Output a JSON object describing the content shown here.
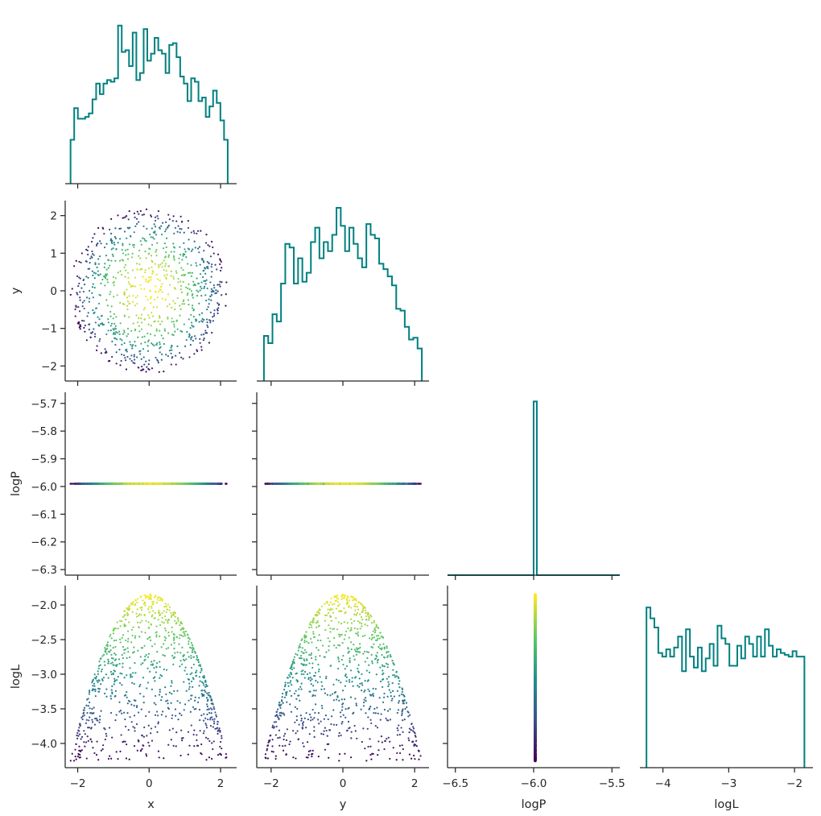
{
  "chart_data": {
    "type": "scatter",
    "title": "",
    "variables": [
      "x",
      "y",
      "logP",
      "logL"
    ],
    "axis_labels": {
      "x": "x",
      "y": "y",
      "logP": "logP",
      "logL": "logL"
    },
    "ranges": {
      "x": [
        -2.35,
        2.45
      ],
      "y": [
        -2.4,
        2.4
      ],
      "logP": [
        -6.32,
        -5.66
      ],
      "logP_diag": [
        -6.55,
        -5.45
      ],
      "logL": [
        -4.35,
        -1.72
      ]
    },
    "ticks": {
      "x": [
        -2,
        0,
        2
      ],
      "y": [
        -2,
        0,
        2
      ],
      "y_left": [
        -2,
        -1,
        0,
        1,
        2
      ],
      "logP_left": [
        -5.7,
        -5.8,
        -5.9,
        -6.0,
        -6.1,
        -6.2,
        -6.3
      ],
      "logP_bottom": [
        -6.5,
        -6.0,
        -5.5
      ],
      "logL_left": [
        -2.0,
        -2.5,
        -3.0,
        -3.5,
        -4.0
      ],
      "logL_bottom": [
        -4,
        -3,
        -2
      ]
    },
    "tick_labels": {
      "x": [
        "−2",
        "0",
        "2"
      ],
      "y_bottom": [
        "−2",
        "0",
        "2"
      ],
      "y_left": [
        "−2",
        "−1",
        "0",
        "1",
        "2"
      ],
      "logP_left": [
        "−5.7",
        "−5.8",
        "−5.9",
        "−6.0",
        "−6.1",
        "−6.2",
        "−6.3"
      ],
      "logP_bottom": [
        "−6.5",
        "−6.0",
        "−5.5"
      ],
      "logL_left": [
        "−2.0",
        "−2.5",
        "−3.0",
        "−3.5",
        "−4.0"
      ],
      "logL_bottom": [
        "−4",
        "−3",
        "−2"
      ]
    },
    "constant_logP": -5.99,
    "disc_radius": 2.2,
    "logL_max": -1.85,
    "logL_min": -4.25,
    "n_samples": 900,
    "histograms": {
      "x": {
        "range": [
          -2.2,
          2.2
        ],
        "heights": [
          0.25,
          0.43,
          0.37,
          0.37,
          0.38,
          0.4,
          0.48,
          0.57,
          0.51,
          0.57,
          0.59,
          0.58,
          0.6,
          0.9,
          0.75,
          0.76,
          0.67,
          0.86,
          0.59,
          0.63,
          0.88,
          0.7,
          0.74,
          0.83,
          0.76,
          0.74,
          0.63,
          0.79,
          0.8,
          0.72,
          0.61,
          0.57,
          0.47,
          0.6,
          0.58,
          0.47,
          0.49,
          0.38,
          0.44,
          0.53,
          0.46,
          0.36,
          0.25
        ],
        "ymax": 1.0
      },
      "y": {
        "range": [
          -2.2,
          2.2
        ],
        "heights": [
          0.25,
          0.21,
          0.37,
          0.33,
          0.54,
          0.76,
          0.74,
          0.54,
          0.68,
          0.55,
          0.6,
          0.77,
          0.85,
          0.68,
          0.77,
          0.72,
          0.81,
          0.96,
          0.86,
          0.72,
          0.85,
          0.76,
          0.68,
          0.63,
          0.87,
          0.81,
          0.79,
          0.65,
          0.62,
          0.58,
          0.53,
          0.4,
          0.39,
          0.3,
          0.23,
          0.24,
          0.18
        ],
        "ymax": 1.0
      },
      "logP": {
        "range": [
          -6.55,
          -5.45
        ],
        "spike_at": -5.99,
        "spike_height": 0.95,
        "ymax": 1.0
      },
      "logL": {
        "range": [
          -4.25,
          -1.85
        ],
        "heights": [
          0.88,
          0.82,
          0.77,
          0.63,
          0.61,
          0.65,
          0.61,
          0.66,
          0.72,
          0.53,
          0.76,
          0.61,
          0.55,
          0.66,
          0.53,
          0.6,
          0.68,
          0.56,
          0.78,
          0.71,
          0.68,
          0.56,
          0.56,
          0.67,
          0.6,
          0.72,
          0.68,
          0.61,
          0.72,
          0.61,
          0.76,
          0.67,
          0.61,
          0.65,
          0.63,
          0.62,
          0.61,
          0.64,
          0.61,
          0.61
        ],
        "ymax": 1.0
      }
    },
    "colors": {
      "hist": "#008080",
      "spine": "#262626",
      "colormap": [
        "#440154",
        "#3b528b",
        "#21918c",
        "#5ec962",
        "#fde725"
      ]
    },
    "grid": false,
    "legend": "none"
  }
}
